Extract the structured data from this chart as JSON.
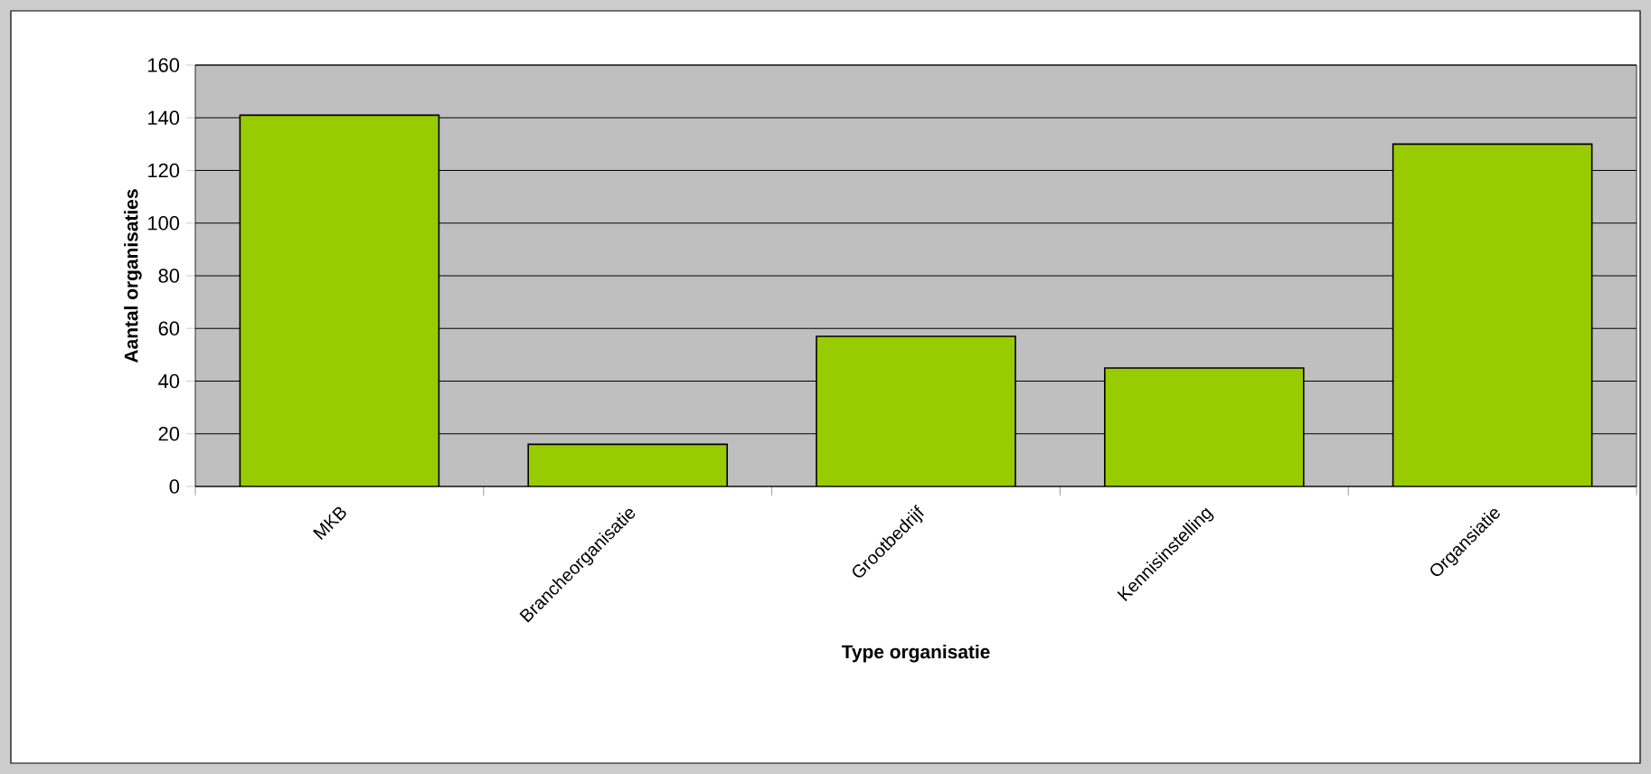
{
  "chart_data": {
    "type": "bar",
    "xlabel": "Type organisatie",
    "ylabel": "Aantal organisaties",
    "categories": [
      "MKB",
      "Brancheorganisatie",
      "Grootbedrijf",
      "Kennisinstelling",
      "Organsiatie"
    ],
    "values": [
      141,
      16,
      57,
      45,
      130
    ],
    "color": "#99cc00",
    "ylim": [
      0,
      160
    ],
    "yticks": [
      0,
      20,
      40,
      60,
      80,
      100,
      120,
      140,
      160
    ],
    "grid": "y"
  }
}
